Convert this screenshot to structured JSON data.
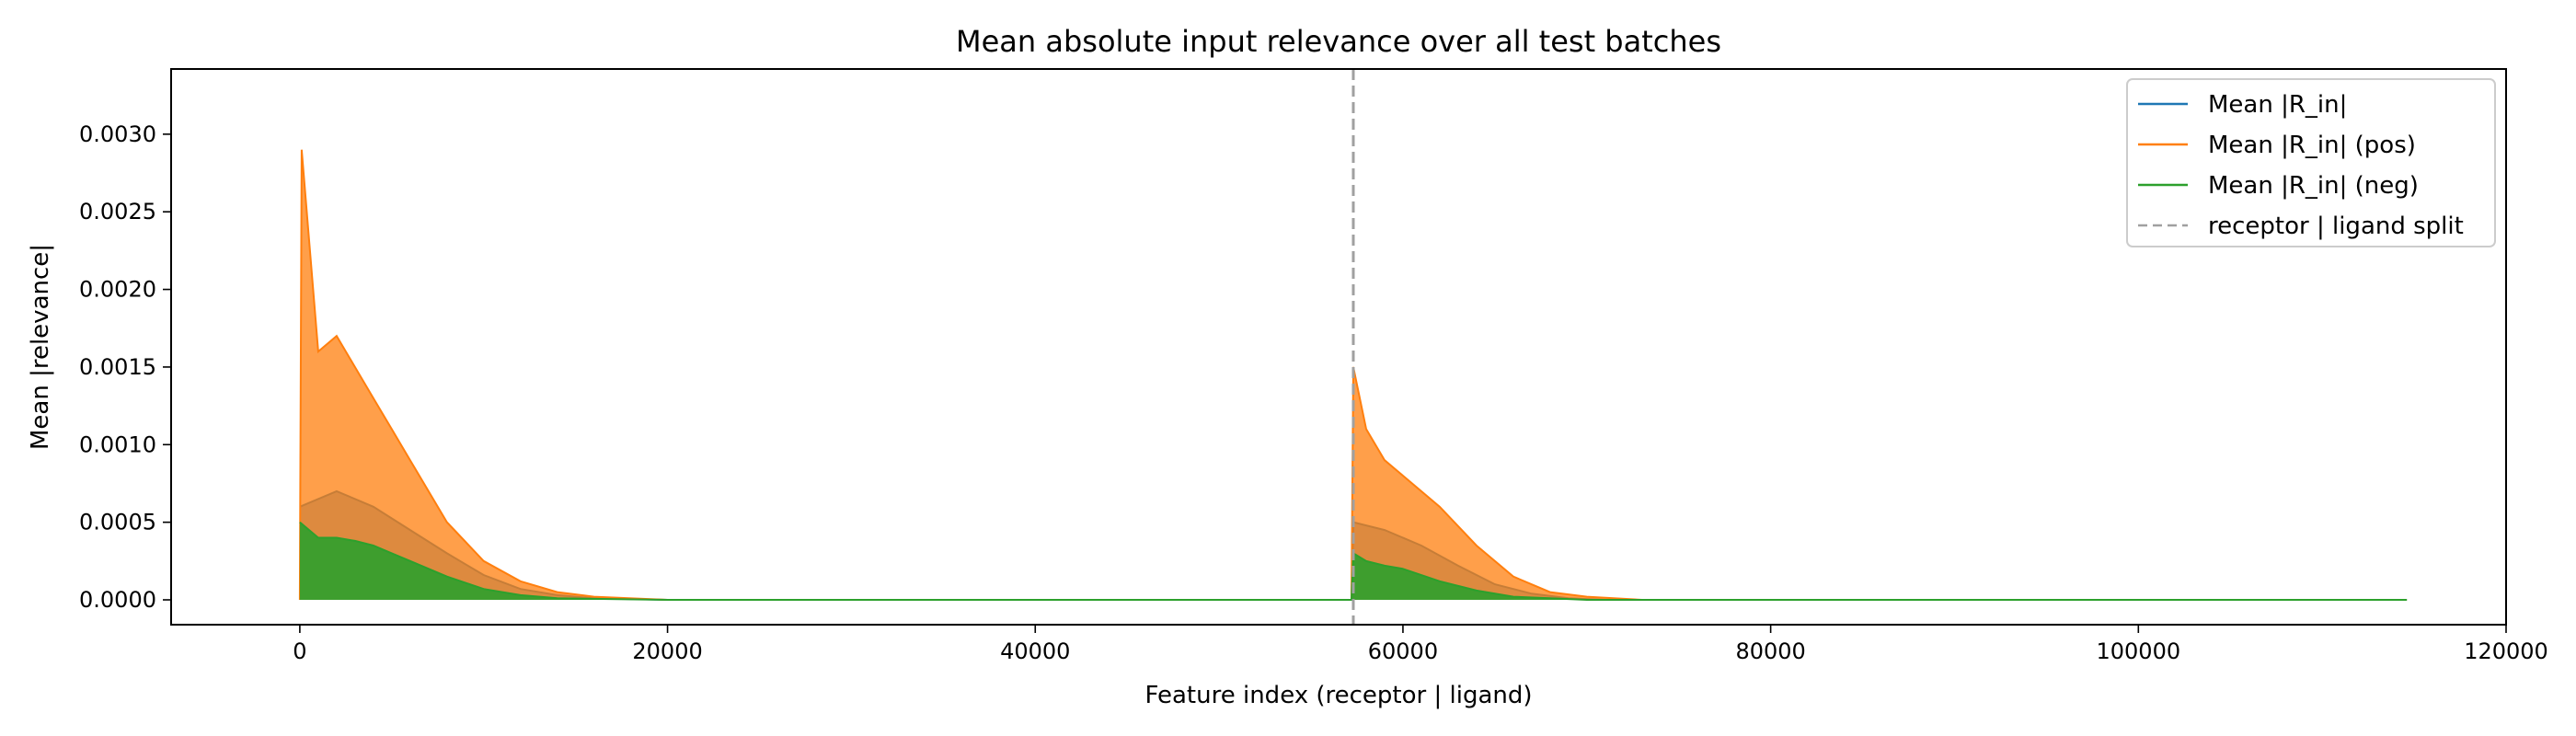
{
  "chart_data": {
    "type": "line",
    "title": "Mean absolute input relevance over all test batches",
    "xlabel": "Feature index (receptor | ligand)",
    "ylabel": "Mean |relevance|",
    "xlim": [
      -7000,
      120000
    ],
    "ylim": [
      -0.00016,
      0.00342
    ],
    "xticks": [
      0,
      20000,
      40000,
      60000,
      80000,
      100000,
      120000
    ],
    "xtick_labels": [
      "0",
      "20000",
      "40000",
      "60000",
      "80000",
      "100000",
      "120000"
    ],
    "yticks": [
      0,
      0.0005,
      0.001,
      0.0015,
      0.002,
      0.0025,
      0.003
    ],
    "ytick_labels": [
      "0.0000",
      "0.0005",
      "0.0010",
      "0.0015",
      "0.0020",
      "0.0025",
      "0.0030"
    ],
    "grid": false,
    "legend_position": "top-right",
    "split_index": 57300,
    "series": [
      {
        "name": "Mean |R_in|",
        "color": "#1f77b4",
        "x": [
          0,
          2000,
          4000,
          6000,
          8000,
          10000,
          12000,
          14000,
          16000,
          20000,
          57200,
          57300,
          59000,
          61000,
          63000,
          65000,
          67000,
          69000,
          71000,
          73000,
          114600
        ],
        "values": [
          0.0006,
          0.0007,
          0.0006,
          0.00045,
          0.0003,
          0.00016,
          7e-05,
          3e-05,
          1e-05,
          0.0,
          0.0,
          0.0005,
          0.00045,
          0.00035,
          0.00022,
          0.0001,
          4e-05,
          1e-05,
          0.0,
          0.0,
          0.0
        ]
      },
      {
        "name": "Mean |R_in| (pos)",
        "color": "#ff7f0e",
        "x": [
          0,
          100,
          1000,
          2000,
          3000,
          4000,
          5000,
          6000,
          8000,
          10000,
          12000,
          14000,
          16000,
          20000,
          57200,
          57300,
          58000,
          59000,
          60000,
          62000,
          64000,
          66000,
          68000,
          70000,
          73000,
          114600
        ],
        "values": [
          0.0,
          0.0029,
          0.0016,
          0.0017,
          0.0015,
          0.0013,
          0.0011,
          0.0009,
          0.0005,
          0.00025,
          0.00012,
          5e-05,
          2e-05,
          0.0,
          0.0,
          0.0015,
          0.0011,
          0.0009,
          0.0008,
          0.0006,
          0.00035,
          0.00015,
          5e-05,
          2e-05,
          0.0,
          0.0
        ]
      },
      {
        "name": "Mean |R_in| (neg)",
        "color": "#2ca02c",
        "x": [
          0,
          1000,
          2000,
          3000,
          4000,
          5000,
          6000,
          8000,
          10000,
          12000,
          14000,
          20000,
          57200,
          57300,
          58000,
          59000,
          60000,
          62000,
          64000,
          66000,
          68000,
          70000,
          114600
        ],
        "values": [
          0.0005,
          0.0004,
          0.0004,
          0.00038,
          0.00035,
          0.0003,
          0.00025,
          0.00015,
          7e-05,
          3e-05,
          1e-05,
          0.0,
          0.0,
          0.0003,
          0.00025,
          0.00022,
          0.0002,
          0.00012,
          6e-05,
          2e-05,
          1e-05,
          0.0,
          0.0
        ]
      },
      {
        "name": "receptor | ligand split",
        "color": "#a0a0a0",
        "style": "dashed"
      }
    ]
  }
}
